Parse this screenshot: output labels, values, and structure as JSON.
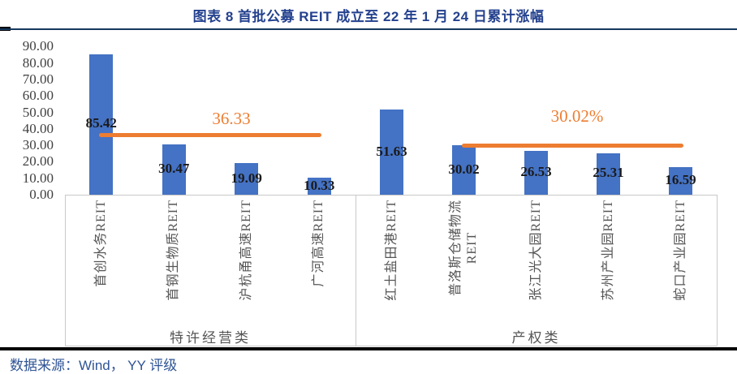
{
  "title": "图表 8 首批公募 REIT 成立至 22 年 1 月 24 日累计涨幅",
  "source": "数据来源：Wind， YY 评级",
  "colors": {
    "bar": "#4472C4",
    "accent_line": "#ED7D31",
    "title_text": "#24418E",
    "source_text": "#2F5496",
    "title_rule": "#17375E",
    "title_rule_cap": "#000000",
    "bottom_rule": "#000000",
    "value_label": "#1A1A1A",
    "axis_text": "#404040",
    "category_text": "#555555",
    "box_border": "#C9C9C9",
    "background": "#FFFFFF"
  },
  "chart_data": {
    "type": "bar",
    "title": "图表 8 首批公募 REIT 成立至 22 年 1 月 24 日累计涨幅",
    "xlabel": "",
    "ylabel": "",
    "ylim": [
      0,
      90
    ],
    "ytick_step": 10,
    "ytick_labels": [
      "0.00",
      "10.00",
      "20.00",
      "30.00",
      "40.00",
      "50.00",
      "60.00",
      "70.00",
      "80.00",
      "90.00"
    ],
    "grid": false,
    "legend": "none",
    "groups": [
      {
        "label": "特许经营类",
        "items": [
          {
            "name": "首创水务REIT",
            "value": 85.42,
            "value_label": "85.42"
          },
          {
            "name": "首钢生物质REIT",
            "value": 30.47,
            "value_label": "30.47"
          },
          {
            "name": "沪杭甬高速REIT",
            "value": 19.09,
            "value_label": "19.09"
          },
          {
            "name": "广河高速REIT",
            "value": 10.33,
            "value_label": "10.33"
          }
        ],
        "average_line": {
          "value": 36.33,
          "label": "36.33",
          "span": [
            0,
            3
          ]
        }
      },
      {
        "label": "产权类",
        "items": [
          {
            "name": "红土盐田港REIT",
            "value": 51.63,
            "value_label": "51.63"
          },
          {
            "name": "普洛斯仓储物流\nREIT",
            "value": 30.02,
            "value_label": "30.02"
          },
          {
            "name": "张江光大园REIT",
            "value": 26.53,
            "value_label": "26.53"
          },
          {
            "name": "苏州产业园REIT",
            "value": 25.31,
            "value_label": "25.31"
          },
          {
            "name": "蛇口产业园REIT",
            "value": 16.59,
            "value_label": "16.59"
          }
        ],
        "average_line": {
          "value": 30.02,
          "label": "30.02%",
          "span": [
            1,
            4
          ]
        }
      }
    ]
  }
}
